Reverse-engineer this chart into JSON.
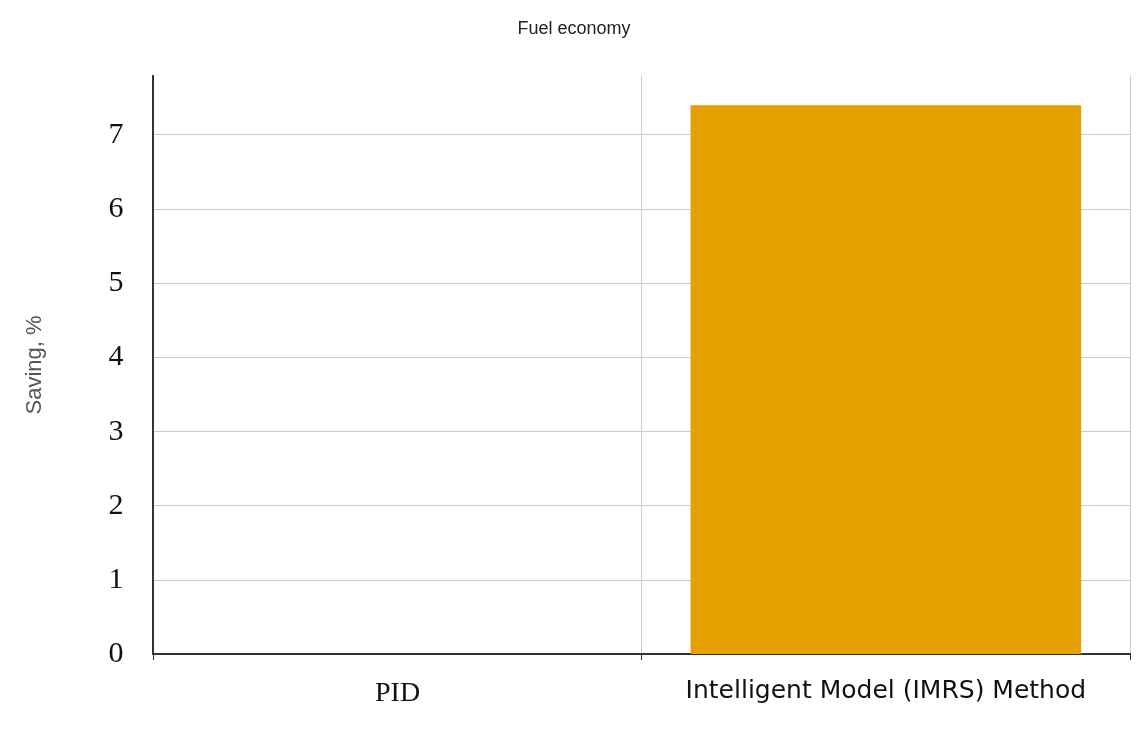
{
  "chart_data": {
    "type": "bar",
    "title": "Fuel economy",
    "ylabel": "Saving, %",
    "categories": [
      "PID",
      "Intelligent Model (IMRS) Method"
    ],
    "values": [
      0,
      7.4
    ],
    "color": "#e69f00",
    "ylim": [
      0,
      7.8
    ],
    "yticks": [
      0,
      1,
      2,
      3,
      4,
      5,
      6,
      7
    ],
    "grid": true,
    "legend": false
  }
}
